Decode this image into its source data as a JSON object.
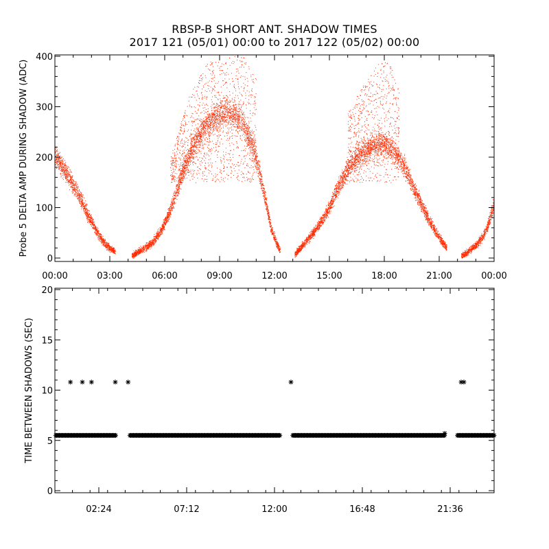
{
  "title": "RBSP-B SHORT ANT. SHADOW TIMES",
  "subtitle": "2017 121 (05/01) 00:00 to 2017 122 (05/02) 00:00",
  "colors": {
    "upper_points": "#ff2a00",
    "lower_points": "#000000",
    "axes": "#000000"
  },
  "chart_data": [
    {
      "type": "scatter",
      "ylabel": "Probe 5 DELTA AMP DURING SHADOW (ADC)",
      "xlabel": "",
      "xlim": [
        0,
        24
      ],
      "ylim": [
        0,
        400
      ],
      "x_tick_labels": [
        "00:00",
        "03:00",
        "06:00",
        "09:00",
        "12:00",
        "15:00",
        "18:00",
        "21:00",
        "00:00"
      ],
      "y_tick_labels": [
        "0",
        "100",
        "200",
        "300",
        "400"
      ],
      "marker": "dot",
      "envelopes": [
        {
          "x": [
            0.0,
            0.3,
            0.6,
            0.9,
            1.2,
            1.5,
            1.8,
            2.1,
            2.4,
            2.7,
            3.0,
            3.3
          ],
          "y": [
            205,
            185,
            170,
            150,
            130,
            110,
            85,
            65,
            45,
            30,
            20,
            12
          ]
        },
        {
          "x": [
            4.2,
            4.8,
            5.3,
            5.8,
            6.3,
            6.8,
            7.3,
            7.8,
            8.3,
            8.8,
            9.3,
            9.8,
            10.3,
            10.8,
            11.3,
            11.8,
            12.1,
            12.3
          ],
          "y": [
            5,
            18,
            30,
            55,
            95,
            150,
            205,
            240,
            265,
            280,
            290,
            285,
            265,
            225,
            150,
            60,
            30,
            15
          ]
        },
        {
          "x": [
            13.1,
            13.6,
            14.1,
            14.6,
            15.1,
            15.6,
            16.1,
            16.6,
            17.1,
            17.6,
            18.1,
            18.6,
            19.1,
            19.6,
            20.1,
            20.6,
            21.1,
            21.4
          ],
          "y": [
            8,
            28,
            50,
            75,
            110,
            150,
            185,
            205,
            215,
            225,
            225,
            210,
            180,
            140,
            100,
            65,
            35,
            20
          ]
        },
        {
          "x": [
            22.2,
            22.5,
            22.8,
            23.1,
            23.4,
            23.7,
            24.0
          ],
          "y": [
            5,
            10,
            20,
            30,
            45,
            70,
            110
          ]
        }
      ],
      "spread_regions": [
        {
          "x": [
            6.3,
            7.3,
            8.3,
            9.3,
            10.3,
            11.0
          ],
          "y_top": [
            200,
            320,
            390,
            400,
            400,
            360
          ]
        },
        {
          "x": [
            16.0,
            16.8,
            17.5,
            18.2,
            18.8
          ],
          "y_top": [
            290,
            340,
            380,
            400,
            330
          ]
        }
      ]
    },
    {
      "type": "scatter",
      "ylabel": "TIME BETWEEN SHADOWS (SEC)",
      "xlabel": "",
      "xlim": [
        0,
        24
      ],
      "ylim": [
        0,
        20
      ],
      "x_tick_labels": [
        "02:24",
        "07:12",
        "12:00",
        "16:48",
        "21:36"
      ],
      "x_tick_values": [
        2.4,
        7.2,
        12.0,
        16.8,
        21.6
      ],
      "y_tick_labels": [
        "0",
        "5",
        "10",
        "15",
        "20"
      ],
      "marker": "asterisk",
      "baseline_value": 5.5,
      "baseline_segments": [
        [
          0.05,
          3.35
        ],
        [
          4.1,
          12.3
        ],
        [
          13.0,
          21.3
        ],
        [
          22.0,
          24.0
        ]
      ],
      "outliers": [
        {
          "x": 0.85,
          "y": 10.8
        },
        {
          "x": 1.5,
          "y": 10.8
        },
        {
          "x": 2.0,
          "y": 10.8
        },
        {
          "x": 3.3,
          "y": 10.8
        },
        {
          "x": 4.0,
          "y": 10.8
        },
        {
          "x": 12.9,
          "y": 10.8
        },
        {
          "x": 22.2,
          "y": 10.8
        },
        {
          "x": 22.35,
          "y": 10.8
        },
        {
          "x": 21.3,
          "y": 5.7
        }
      ]
    }
  ]
}
